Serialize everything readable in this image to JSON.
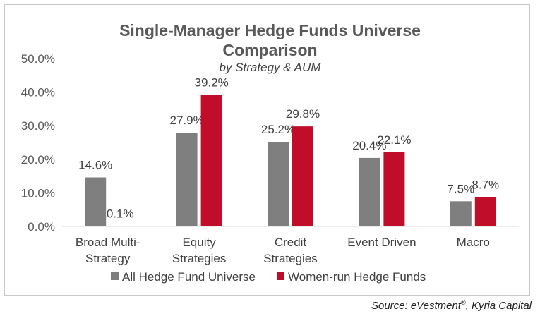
{
  "chart_data": {
    "type": "bar",
    "title_line1": "Single-Manager Hedge Funds Universe",
    "title_line2": "Comparison",
    "subtitle": "by Strategy & AUM",
    "categories": [
      [
        "Broad Multi-",
        "Strategy"
      ],
      [
        "Equity",
        "Strategies"
      ],
      [
        "Credit",
        "Strategies"
      ],
      [
        "Event Driven"
      ],
      [
        "Macro"
      ]
    ],
    "series": [
      {
        "name": "All Hedge Fund Universe",
        "color": "#7f7f7f",
        "values": [
          14.6,
          27.9,
          25.2,
          20.4,
          7.5
        ]
      },
      {
        "name": "Women-run Hedge Funds",
        "color": "#c00d2a",
        "values": [
          0.1,
          39.2,
          29.8,
          22.1,
          8.7
        ]
      }
    ],
    "ylim": [
      0,
      50
    ],
    "yticks": [
      0,
      10,
      20,
      30,
      40,
      50
    ],
    "yticklabels": [
      "0.0%",
      "10.0%",
      "20.0%",
      "30.0%",
      "40.0%",
      "50.0%"
    ],
    "data_labels": [
      [
        "14.6%",
        "0.1%"
      ],
      [
        "27.9%",
        "39.2%"
      ],
      [
        "25.2%",
        "29.8%"
      ],
      [
        "20.4%",
        "22.1%"
      ],
      [
        "7.5%",
        "8.7%"
      ]
    ],
    "legend_position": "bottom",
    "grid": false
  },
  "source": {
    "prefix": "Source: eVestment",
    "superscript": "®",
    "suffix": ", Kyria Capital"
  }
}
